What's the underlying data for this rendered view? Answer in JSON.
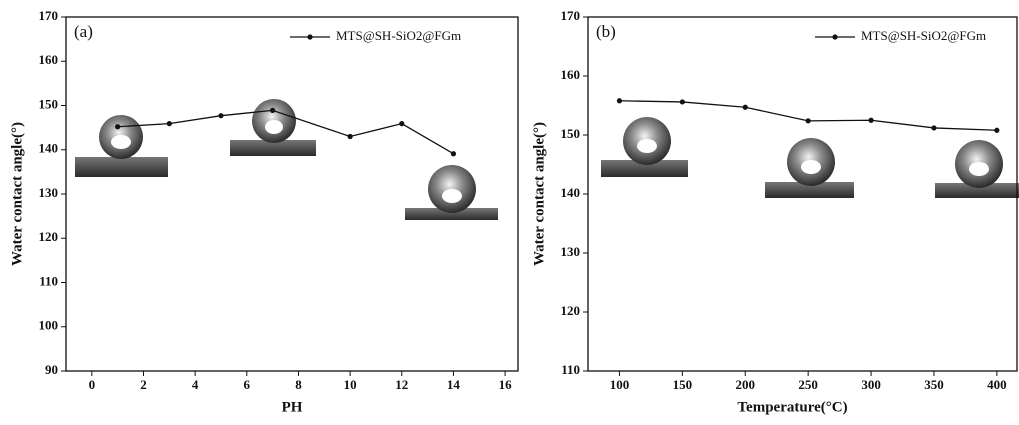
{
  "chart_data": [
    {
      "type": "line",
      "panel_label": "(a)",
      "x_label": "PH",
      "y_label": "Water contact angle(°)",
      "x": [
        1,
        3,
        5,
        7,
        10,
        12,
        14
      ],
      "series": [
        {
          "name": "MTS@SH-SiO2@FGm",
          "color": "#111111",
          "values": [
            145.2,
            145.9,
            147.7,
            148.9,
            143.0,
            145.9,
            139.1
          ]
        }
      ],
      "xlim": [
        -1,
        16.5
      ],
      "xticks": [
        0,
        2,
        4,
        6,
        8,
        10,
        12,
        14,
        16
      ],
      "ylim": [
        90,
        170
      ],
      "yticks": [
        90,
        100,
        110,
        120,
        130,
        140,
        150,
        160,
        170
      ]
    },
    {
      "type": "line",
      "panel_label": "(b)",
      "x_label": "Temperature(°C)",
      "y_label": "Water contact angle(°)",
      "x": [
        100,
        150,
        200,
        250,
        300,
        350,
        400
      ],
      "series": [
        {
          "name": "MTS@SH-SiO2@FGm",
          "color": "#111111",
          "values": [
            155.8,
            155.6,
            154.7,
            152.4,
            152.5,
            151.2,
            150.8
          ]
        }
      ],
      "xlim": [
        75,
        416
      ],
      "xticks": [
        100,
        150,
        200,
        250,
        300,
        350,
        400
      ],
      "ylim": [
        110,
        170
      ],
      "yticks": [
        110,
        120,
        130,
        140,
        150,
        160,
        170
      ]
    }
  ]
}
